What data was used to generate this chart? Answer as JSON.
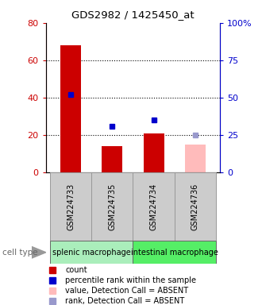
{
  "title": "GDS2982 / 1425450_at",
  "samples": [
    "GSM224733",
    "GSM224735",
    "GSM224734",
    "GSM224736"
  ],
  "bar_values": [
    68,
    14,
    21,
    15
  ],
  "bar_colors": [
    "#cc0000",
    "#cc0000",
    "#cc0000",
    "#ffbbbb"
  ],
  "dot_values": [
    52,
    31,
    35,
    25
  ],
  "dot_colors": [
    "#0000cc",
    "#0000cc",
    "#0000cc",
    "#9999cc"
  ],
  "ylim_left": [
    0,
    80
  ],
  "ylim_right": [
    0,
    100
  ],
  "yticks_left": [
    0,
    20,
    40,
    60,
    80
  ],
  "ytick_labels_left": [
    "0",
    "20",
    "40",
    "60",
    "80"
  ],
  "ytick_labels_right": [
    "0",
    "25",
    "50",
    "75",
    "100%"
  ],
  "grid_lines": [
    20,
    40,
    60
  ],
  "cell_type_groups": [
    {
      "label": "splenic macrophage",
      "start": 0,
      "end": 2,
      "color": "#aaeebb"
    },
    {
      "label": "intestinal macrophage",
      "start": 2,
      "end": 4,
      "color": "#55ee66"
    }
  ],
  "legend_items": [
    {
      "color": "#cc0000",
      "label": "count"
    },
    {
      "color": "#0000cc",
      "label": "percentile rank within the sample"
    },
    {
      "color": "#ffbbbb",
      "label": "value, Detection Call = ABSENT"
    },
    {
      "color": "#9999cc",
      "label": "rank, Detection Call = ABSENT"
    }
  ],
  "left_axis_color": "#cc0000",
  "right_axis_color": "#0000cc",
  "bg_color": "#ffffff",
  "label_bg": "#cccccc",
  "bar_width": 0.5
}
